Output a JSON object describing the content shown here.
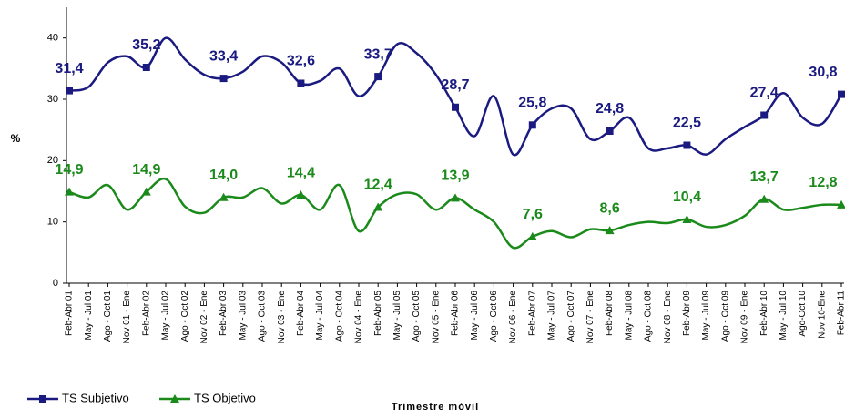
{
  "chart_data": {
    "type": "line",
    "y_label": "%",
    "x_label": "Trimestre móvil",
    "categories": [
      "Feb-Abr 01",
      "May - Jul 01",
      "Ago - Oct 01",
      "Nov 01 - Ene",
      "Feb-Abr 02",
      "May - Jul 02",
      "Ago - Oct 02",
      "Nov 02 - Ene",
      "Feb-Abr 03",
      "May - Jul 03",
      "Ago - Oct 03",
      "Nov 03 - Ene",
      "Feb-Abr 04",
      "May - Jul 04",
      "Ago - Oct 04",
      "Nov 04 - Ene",
      "Feb-Abr 05",
      "May - Jul 05",
      "Ago - Oct 05",
      "Nov 05 - Ene",
      "Feb-Abr 06",
      "May - Jul 06",
      "Ago - Oct 06",
      "Nov 06 - Ene",
      "Feb-Abr 07",
      "May - Jul 07",
      "Ago - Oct 07",
      "Nov 07 - Ene",
      "Feb-Abr 08",
      "May - Jul 08",
      "Ago - Oct 08",
      "Nov 08 - Ene",
      "Feb-Abr 09",
      "May - Jul 09",
      "Ago - Oct 09",
      "Nov 09 - Ene",
      "Feb-Abr 10",
      "May - Jul 10",
      "Ago-Oct 10",
      "Nov 10-Ene",
      "Feb-Abr 11"
    ],
    "series": [
      {
        "name": "TS Subjetivo",
        "color": "#1a1a80",
        "marker": "square",
        "values": [
          31.4,
          32,
          36,
          37,
          35.2,
          40,
          36.5,
          34,
          33.4,
          34.5,
          37,
          36,
          32.6,
          33,
          35,
          30.5,
          33.7,
          39,
          37.5,
          34,
          28.7,
          24,
          30.5,
          21,
          25.8,
          28.5,
          28.5,
          23.5,
          24.8,
          27,
          22,
          22,
          22.5,
          21,
          23.5,
          25.5,
          27.4,
          31,
          27,
          26,
          30.8
        ],
        "value_labels": [
          "31,4",
          null,
          null,
          null,
          "35,2",
          null,
          null,
          null,
          "33,4",
          null,
          null,
          null,
          "32,6",
          null,
          null,
          null,
          "33,7",
          null,
          null,
          null,
          "28,7",
          null,
          null,
          null,
          "25,8",
          null,
          null,
          null,
          "24,8",
          null,
          null,
          null,
          "22,5",
          null,
          null,
          null,
          "27,4",
          null,
          null,
          null,
          "30,8"
        ]
      },
      {
        "name": "TS Objetivo",
        "color": "#1a8a1a",
        "marker": "triangle",
        "values": [
          14.9,
          14,
          16,
          12,
          14.9,
          17,
          12.5,
          11.5,
          14.0,
          14,
          15.5,
          13,
          14.4,
          12,
          16,
          8.5,
          12.4,
          14.5,
          14.5,
          12,
          13.9,
          12,
          10,
          5.8,
          7.6,
          8.5,
          7.5,
          8.8,
          8.6,
          9.5,
          10,
          9.8,
          10.4,
          9.2,
          9.5,
          11,
          13.7,
          12,
          12.3,
          12.8,
          12.8
        ],
        "value_labels": [
          "14,9",
          null,
          null,
          null,
          "14,9",
          null,
          null,
          null,
          "14,0",
          null,
          null,
          null,
          "14,4",
          null,
          null,
          null,
          "12,4",
          null,
          null,
          null,
          "13,9",
          null,
          null,
          null,
          "7,6",
          null,
          null,
          null,
          "8,6",
          null,
          null,
          null,
          "10,4",
          null,
          null,
          null,
          "13,7",
          null,
          null,
          null,
          "12,8"
        ]
      }
    ],
    "ylim": [
      0,
      45
    ],
    "yticks": [
      0,
      10,
      20,
      30,
      40
    ],
    "legend": "bottom-left"
  }
}
